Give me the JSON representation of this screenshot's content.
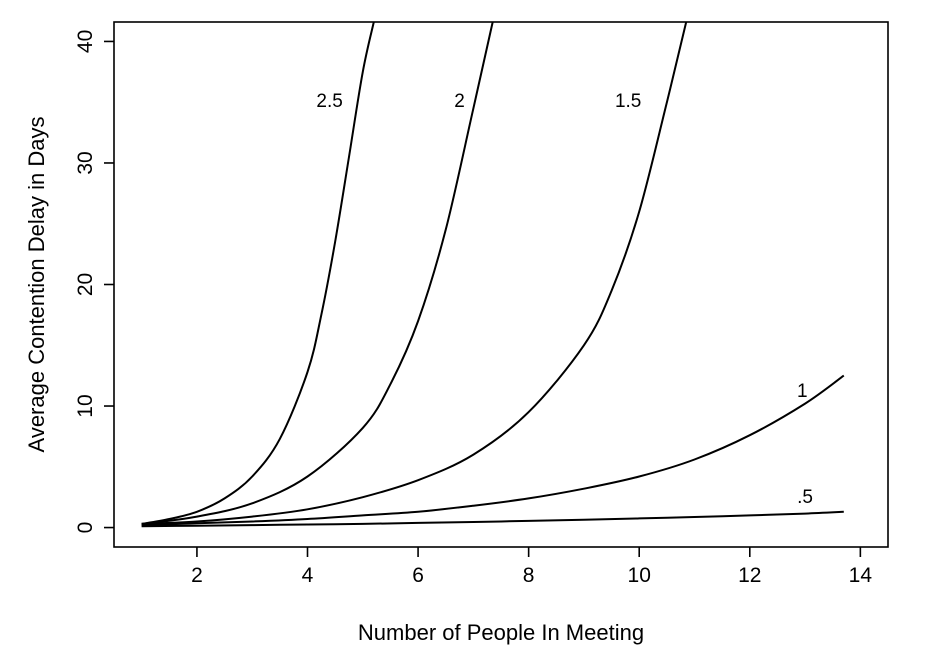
{
  "chart_data": {
    "type": "line",
    "title": "",
    "xlabel": "Number of People In Meeting",
    "ylabel": "Average Contention Delay in Days",
    "xlim": [
      0.5,
      14.5
    ],
    "ylim": [
      -1.6,
      41.6
    ],
    "x_ticks": [
      2,
      4,
      6,
      8,
      10,
      12,
      14
    ],
    "x_tick_labels": [
      "2",
      "4",
      "6",
      "8",
      "10",
      "12",
      "14"
    ],
    "y_ticks": [
      0,
      10,
      20,
      30,
      40
    ],
    "y_tick_labels": [
      "0",
      "10",
      "20",
      "30",
      "40"
    ],
    "grid": false,
    "legend": "none",
    "series": [
      {
        "name": "2.5",
        "label": "2.5",
        "label_pos": [
          4.4,
          35.2
        ],
        "x": [
          1,
          1.5,
          2,
          2.5,
          3,
          3.5,
          4,
          4.25,
          4.5,
          4.75,
          5,
          5.2
        ],
        "y": [
          0.3,
          0.7,
          1.3,
          2.4,
          4.2,
          7.3,
          12.8,
          17.5,
          23.5,
          30.5,
          37.5,
          41.6
        ]
      },
      {
        "name": "2",
        "label": "2",
        "label_pos": [
          6.75,
          35.2
        ],
        "x": [
          1,
          2,
          3,
          4,
          5,
          5.5,
          6,
          6.5,
          7,
          7.35
        ],
        "y": [
          0.3,
          0.9,
          2.0,
          4.2,
          8.2,
          11.8,
          17.0,
          24.5,
          34.5,
          41.6
        ]
      },
      {
        "name": "1.5",
        "label": "1.5",
        "label_pos": [
          9.8,
          35.2
        ],
        "x": [
          1,
          2,
          3,
          4,
          5,
          6,
          7,
          8,
          9,
          9.5,
          10,
          10.5,
          10.85
        ],
        "y": [
          0.3,
          0.5,
          0.9,
          1.5,
          2.5,
          3.9,
          6.0,
          9.5,
          15.0,
          19.5,
          26.0,
          35.0,
          41.6
        ]
      },
      {
        "name": "1",
        "label": "1",
        "label_pos": [
          12.95,
          11.3
        ],
        "x": [
          1,
          2,
          3,
          4,
          5,
          6,
          7,
          8,
          9,
          10,
          11,
          12,
          13,
          13.7
        ],
        "y": [
          0.2,
          0.35,
          0.5,
          0.7,
          1.0,
          1.3,
          1.8,
          2.4,
          3.2,
          4.2,
          5.6,
          7.6,
          10.2,
          12.5
        ]
      },
      {
        "name": ".5",
        "label": ".5",
        "label_pos": [
          13.0,
          2.6
        ],
        "x": [
          1,
          2,
          3,
          4,
          5,
          6,
          7,
          8,
          9,
          10,
          11,
          12,
          13,
          13.7
        ],
        "y": [
          0.1,
          0.15,
          0.2,
          0.25,
          0.3,
          0.38,
          0.46,
          0.55,
          0.65,
          0.75,
          0.87,
          1.0,
          1.15,
          1.3
        ]
      }
    ]
  }
}
